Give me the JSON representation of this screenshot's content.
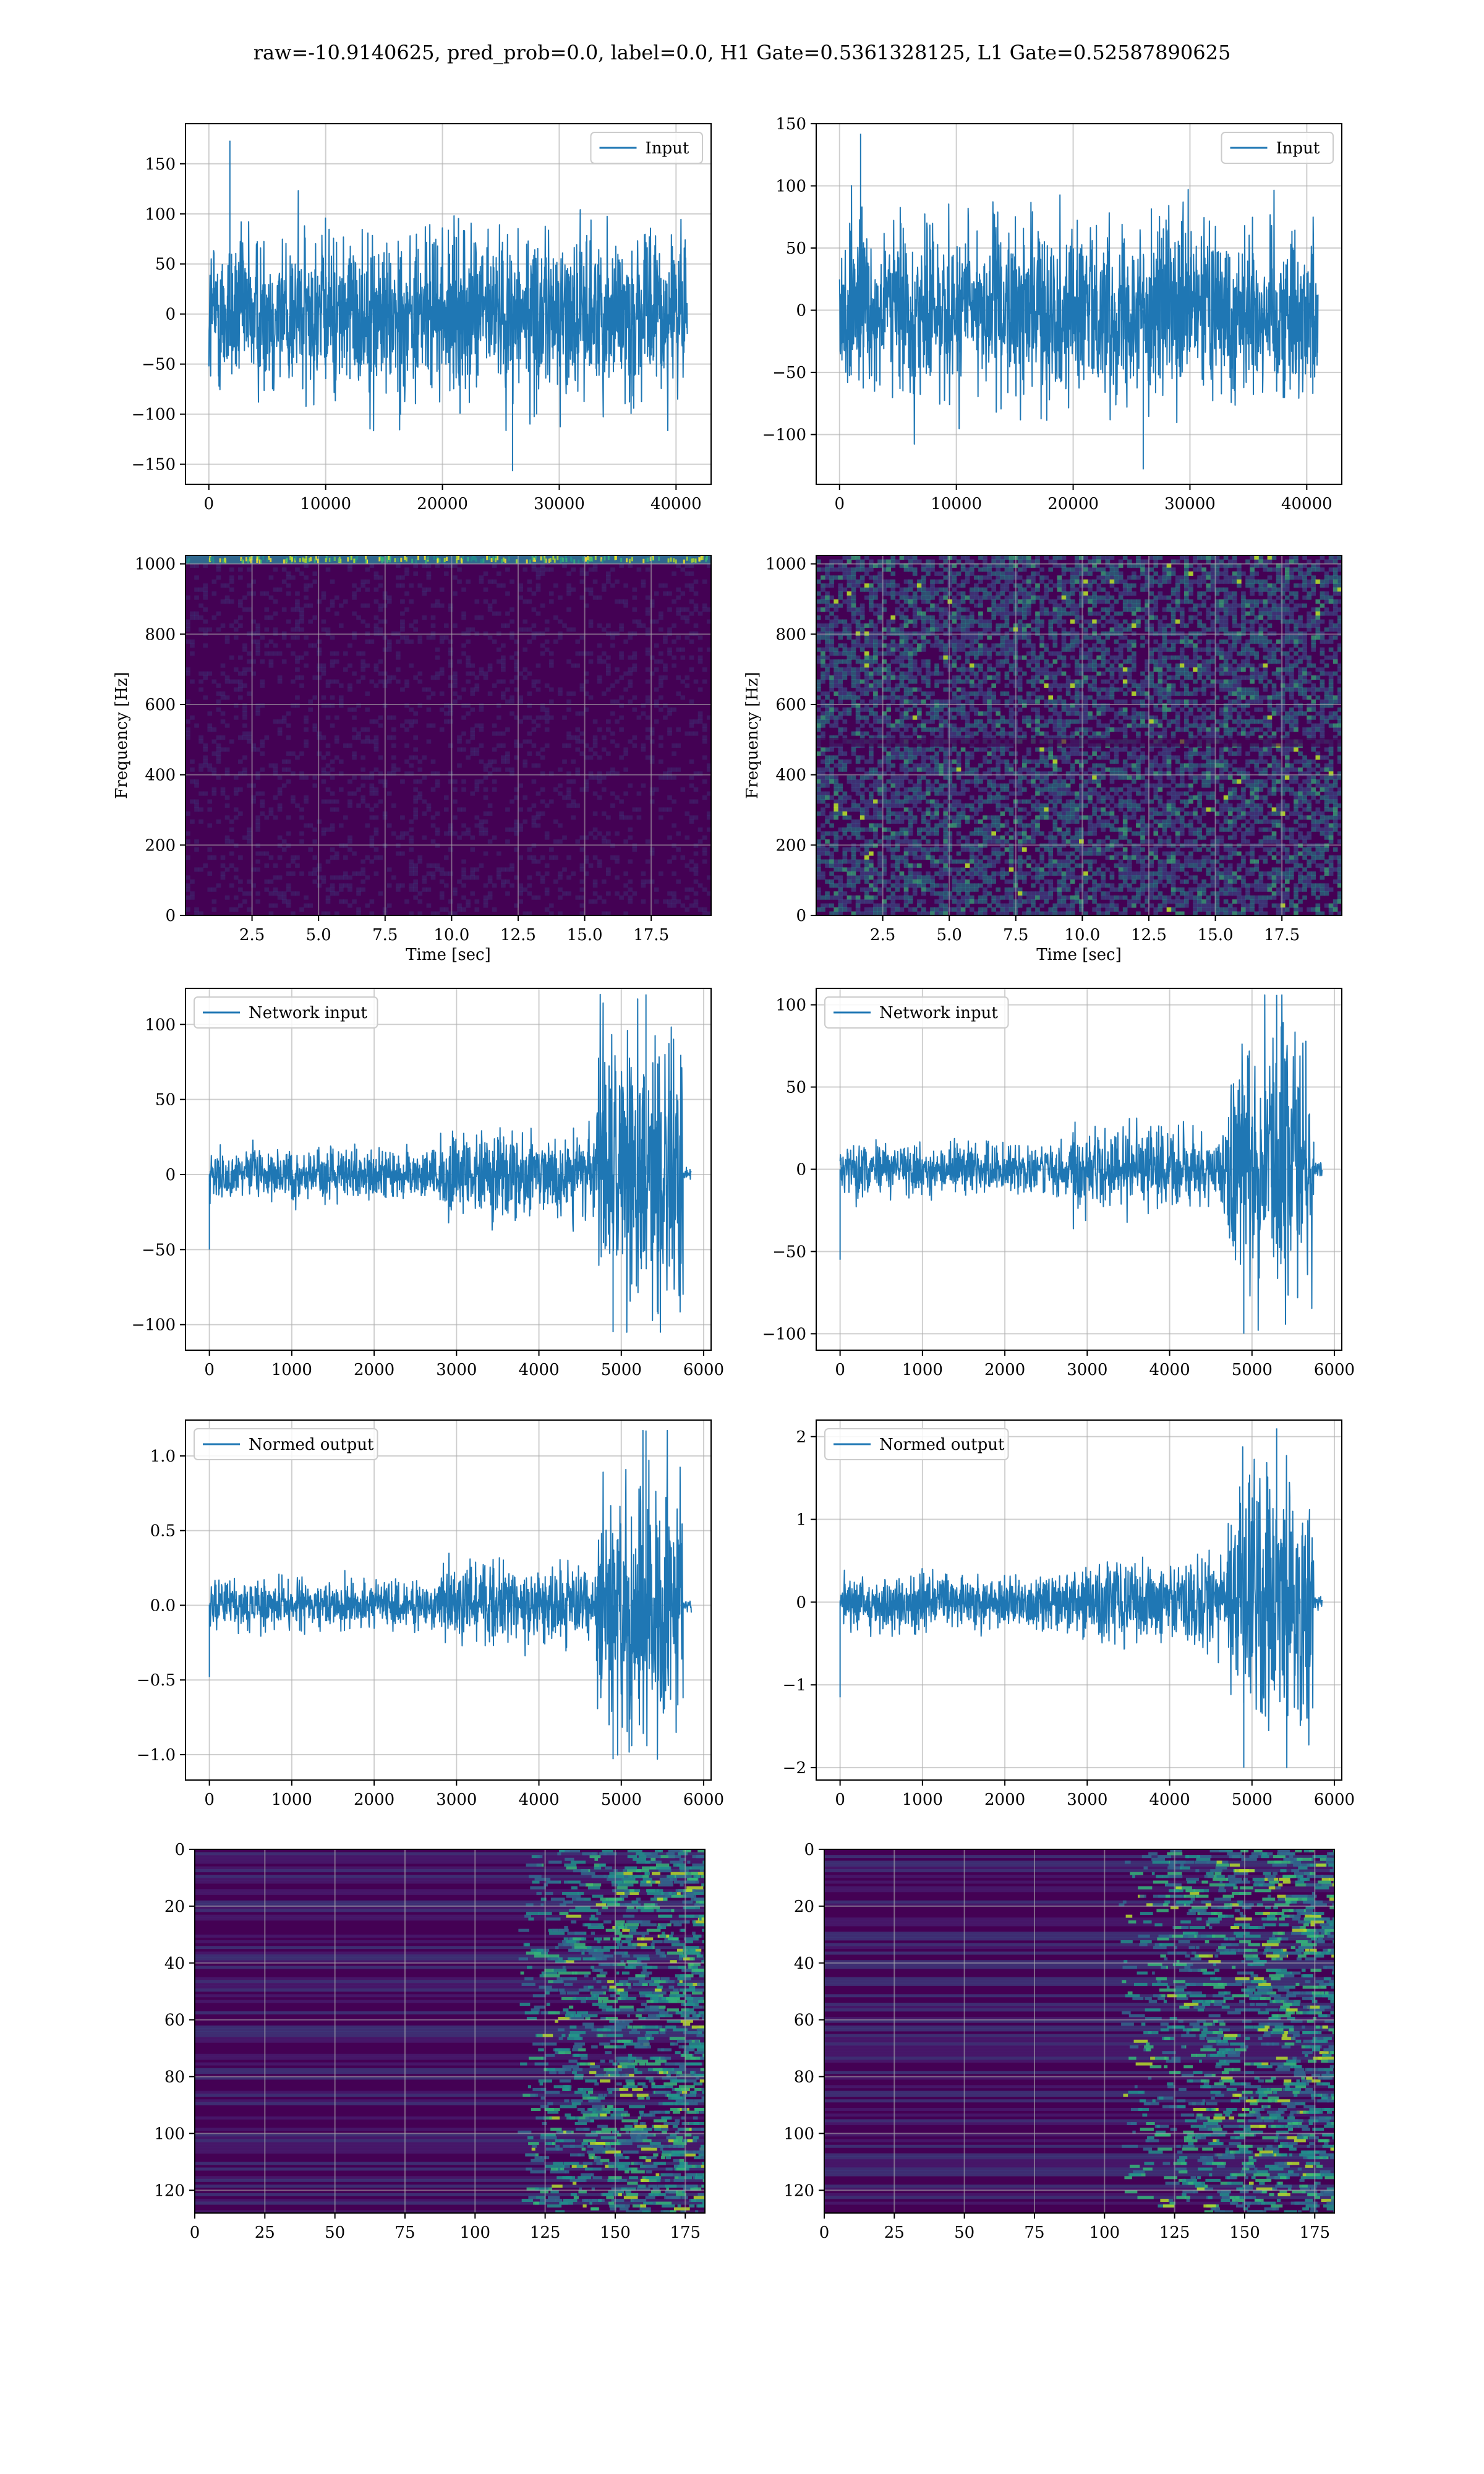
{
  "title": "raw=-10.9140625, pred_prob=0.0, label=0.0, H1 Gate=0.5361328125, L1 Gate=0.52587890625",
  "colors": {
    "line": "#1f77b4",
    "grid": "#b0b0b0",
    "axes": "#000000",
    "viridis_dark": "#440154",
    "viridis_mid": "#21918c",
    "viridis_bright": "#fde725"
  },
  "chart_data": [
    {
      "type": "line",
      "row": 1,
      "col": 1,
      "legend": "Input",
      "legend_loc": "upper right",
      "grid": true,
      "xlim": [
        -2000,
        43000
      ],
      "ylim": [
        -170,
        190
      ],
      "xticks": [
        0,
        10000,
        20000,
        30000,
        40000
      ],
      "yticks": [
        -150,
        -100,
        -50,
        0,
        50,
        100,
        150
      ],
      "x": [
        0,
        40960
      ],
      "envelope": {
        "low": -100,
        "high": 100,
        "peak_max": 173,
        "peak_min": -157
      }
    },
    {
      "type": "line",
      "row": 1,
      "col": 2,
      "legend": "Input",
      "legend_loc": "upper right",
      "grid": true,
      "xlim": [
        -2000,
        43000
      ],
      "ylim": [
        -140,
        150
      ],
      "xticks": [
        0,
        10000,
        20000,
        30000,
        40000
      ],
      "yticks": [
        -100,
        -50,
        0,
        50,
        100,
        150
      ],
      "x": [
        0,
        40960
      ],
      "envelope": {
        "low": -85,
        "high": 85,
        "peak_max": 142,
        "peak_min": -128
      }
    },
    {
      "type": "heatmap",
      "row": 2,
      "col": 1,
      "grid": true,
      "xlabel": "Time [sec]",
      "ylabel": "Frequency [Hz]",
      "xlim": [
        0,
        19.75
      ],
      "ylim": [
        0,
        1024
      ],
      "xticks": [
        2.5,
        5.0,
        7.5,
        10.0,
        12.5,
        15.0,
        17.5
      ],
      "yticks": [
        0,
        200,
        400,
        600,
        800,
        1000
      ],
      "description_values": {
        "band_hz": [
          1000,
          1024
        ]
      }
    },
    {
      "type": "heatmap",
      "row": 2,
      "col": 2,
      "grid": true,
      "xlabel": "Time [sec]",
      "ylabel": "Frequency [Hz]",
      "xlim": [
        0,
        19.75
      ],
      "ylim": [
        0,
        1024
      ],
      "xticks": [
        2.5,
        5.0,
        7.5,
        10.0,
        12.5,
        15.0,
        17.5
      ],
      "yticks": [
        0,
        200,
        400,
        600,
        800,
        1000
      ]
    },
    {
      "type": "line",
      "row": 3,
      "col": 1,
      "legend": "Network input",
      "legend_loc": "upper left",
      "grid": true,
      "xlim": [
        -290,
        6090
      ],
      "ylim": [
        -117,
        124
      ],
      "xticks": [
        0,
        1000,
        2000,
        3000,
        4000,
        5000,
        6000
      ],
      "yticks": [
        -100,
        -50,
        0,
        50,
        100
      ],
      "segments": [
        {
          "x": [
            0,
            2800
          ],
          "amp": 18
        },
        {
          "x": [
            2800,
            4700
          ],
          "amp": 30
        },
        {
          "x": [
            4700,
            5750
          ],
          "amp": 95
        },
        {
          "x": [
            5750,
            5850
          ],
          "amp": 4
        }
      ],
      "extremes": {
        "max": 120,
        "min": -105,
        "start_dip": -50
      }
    },
    {
      "type": "line",
      "row": 3,
      "col": 2,
      "legend": "Network input",
      "legend_loc": "upper left",
      "grid": true,
      "xlim": [
        -290,
        6090
      ],
      "ylim": [
        -110,
        110
      ],
      "xticks": [
        0,
        1000,
        2000,
        3000,
        4000,
        5000,
        6000
      ],
      "yticks": [
        -100,
        -50,
        0,
        50,
        100
      ],
      "segments": [
        {
          "x": [
            0,
            2800
          ],
          "amp": 17
        },
        {
          "x": [
            2800,
            4700
          ],
          "amp": 28
        },
        {
          "x": [
            4700,
            5750
          ],
          "amp": 78
        },
        {
          "x": [
            5750,
            5850
          ],
          "amp": 4
        }
      ],
      "extremes": {
        "max": 106,
        "min": -100,
        "start_dip": -55
      }
    },
    {
      "type": "line",
      "row": 4,
      "col": 1,
      "legend": "Normed output",
      "legend_loc": "upper left",
      "grid": true,
      "xlim": [
        -290,
        6090
      ],
      "ylim": [
        -1.17,
        1.24
      ],
      "xticks": [
        0,
        1000,
        2000,
        3000,
        4000,
        5000,
        6000
      ],
      "yticks": [
        -1.0,
        -0.5,
        0.0,
        0.5,
        1.0
      ],
      "segments": [
        {
          "x": [
            0,
            2800
          ],
          "amp": 0.18
        },
        {
          "x": [
            2800,
            4700
          ],
          "amp": 0.3
        },
        {
          "x": [
            4700,
            5750
          ],
          "amp": 0.95
        },
        {
          "x": [
            5750,
            5850
          ],
          "amp": 0.04
        }
      ],
      "extremes": {
        "max": 1.17,
        "min": -1.03,
        "start_dip": -0.48
      }
    },
    {
      "type": "line",
      "row": 4,
      "col": 2,
      "legend": "Normed output",
      "legend_loc": "upper left",
      "grid": true,
      "xlim": [
        -290,
        6090
      ],
      "ylim": [
        -2.15,
        2.2
      ],
      "xticks": [
        0,
        1000,
        2000,
        3000,
        4000,
        5000,
        6000
      ],
      "yticks": [
        -2,
        -1,
        0,
        1,
        2
      ],
      "segments": [
        {
          "x": [
            0,
            2800
          ],
          "amp": 0.35
        },
        {
          "x": [
            2800,
            4700
          ],
          "amp": 0.55
        },
        {
          "x": [
            4700,
            5750
          ],
          "amp": 1.6
        },
        {
          "x": [
            5750,
            5850
          ],
          "amp": 0.08
        }
      ],
      "extremes": {
        "max": 2.1,
        "min": -2.0,
        "start_dip": -1.15
      }
    },
    {
      "type": "heatmap",
      "row": 5,
      "col": 1,
      "grid": true,
      "xlim": [
        0,
        182
      ],
      "ylim": [
        128,
        0
      ],
      "xticks": [
        0,
        25,
        50,
        75,
        100,
        125,
        150,
        175
      ],
      "yticks": [
        0,
        20,
        40,
        60,
        80,
        100,
        120
      ],
      "activity_onset_x": 115
    },
    {
      "type": "heatmap",
      "row": 5,
      "col": 2,
      "grid": true,
      "xlim": [
        0,
        182
      ],
      "ylim": [
        128,
        0
      ],
      "xticks": [
        0,
        25,
        50,
        75,
        100,
        125,
        150,
        175
      ],
      "yticks": [
        0,
        20,
        40,
        60,
        80,
        100,
        120
      ],
      "activity_onset_x": 105
    }
  ]
}
